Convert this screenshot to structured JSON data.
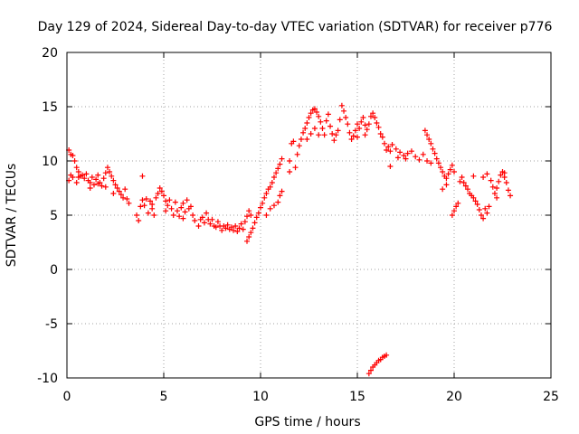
{
  "chart_data": {
    "type": "scatter",
    "title": "Day 129 of 2024, Sidereal Day-to-day VTEC variation (SDTVAR) for receiver p776",
    "xlabel": "GPS time / hours",
    "ylabel": "SDTVAR / TECUs",
    "xlim": [
      0,
      25
    ],
    "ylim": [
      -10,
      20
    ],
    "xticks": [
      "0",
      "5",
      "10",
      "15",
      "20",
      "25"
    ],
    "yticks": [
      "-10",
      "-5",
      "0",
      "5",
      "10",
      "15",
      "20"
    ],
    "grid": true,
    "marker": "plus",
    "colors": {
      "series": "#ff0000",
      "grid": "#a0a0a0",
      "axis": "#000000"
    },
    "series": [
      {
        "name": "SDTVAR",
        "points": [
          [
            0.1,
            11.0
          ],
          [
            0.2,
            10.6
          ],
          [
            0.3,
            10.5
          ],
          [
            0.4,
            10.0
          ],
          [
            0.5,
            9.4
          ],
          [
            0.6,
            9.0
          ],
          [
            0.7,
            8.6
          ],
          [
            0.1,
            8.2
          ],
          [
            0.2,
            8.7
          ],
          [
            0.3,
            8.5
          ],
          [
            0.5,
            8.0
          ],
          [
            0.6,
            8.5
          ],
          [
            0.8,
            8.7
          ],
          [
            0.9,
            8.4
          ],
          [
            1.0,
            8.8
          ],
          [
            1.1,
            8.2
          ],
          [
            1.2,
            8.0
          ],
          [
            1.3,
            8.5
          ],
          [
            1.4,
            7.8
          ],
          [
            1.5,
            8.3
          ],
          [
            1.6,
            8.7
          ],
          [
            1.7,
            8.0
          ],
          [
            1.8,
            7.7
          ],
          [
            1.9,
            8.4
          ],
          [
            2.0,
            8.9
          ],
          [
            2.1,
            9.4
          ],
          [
            2.2,
            9.0
          ],
          [
            2.3,
            8.6
          ],
          [
            2.4,
            8.2
          ],
          [
            2.5,
            7.8
          ],
          [
            2.6,
            7.5
          ],
          [
            2.7,
            7.2
          ],
          [
            2.8,
            6.9
          ],
          [
            2.9,
            6.6
          ],
          [
            3.0,
            7.4
          ],
          [
            3.1,
            6.5
          ],
          [
            3.2,
            6.1
          ],
          [
            1.2,
            7.5
          ],
          [
            1.6,
            7.9
          ],
          [
            2.0,
            7.6
          ],
          [
            2.4,
            7.0
          ],
          [
            3.6,
            5.0
          ],
          [
            3.7,
            4.5
          ],
          [
            3.8,
            5.8
          ],
          [
            3.9,
            6.4
          ],
          [
            4.0,
            5.9
          ],
          [
            4.1,
            6.5
          ],
          [
            4.2,
            5.2
          ],
          [
            4.3,
            6.3
          ],
          [
            4.4,
            5.6
          ],
          [
            4.5,
            5.0
          ],
          [
            4.6,
            6.6
          ],
          [
            4.7,
            7.0
          ],
          [
            4.8,
            7.5
          ],
          [
            4.9,
            7.2
          ],
          [
            5.0,
            6.8
          ],
          [
            5.1,
            6.3
          ],
          [
            5.2,
            5.9
          ],
          [
            5.3,
            6.4
          ],
          [
            5.4,
            5.6
          ],
          [
            5.5,
            5.0
          ],
          [
            5.6,
            6.2
          ],
          [
            5.7,
            5.4
          ],
          [
            5.8,
            4.9
          ],
          [
            5.9,
            5.7
          ],
          [
            6.0,
            6.1
          ],
          [
            6.1,
            5.3
          ],
          [
            6.2,
            6.4
          ],
          [
            6.3,
            5.6
          ],
          [
            6.4,
            5.8
          ],
          [
            6.5,
            5.0
          ],
          [
            6.6,
            4.5
          ],
          [
            3.9,
            8.6
          ],
          [
            4.4,
            6.0
          ],
          [
            5.1,
            5.4
          ],
          [
            6.0,
            4.7
          ],
          [
            6.8,
            4.0
          ],
          [
            6.9,
            4.6
          ],
          [
            7.0,
            4.8
          ],
          [
            7.1,
            4.3
          ],
          [
            7.2,
            5.2
          ],
          [
            7.3,
            4.6
          ],
          [
            7.4,
            4.2
          ],
          [
            7.5,
            4.6
          ],
          [
            7.6,
            4.0
          ],
          [
            7.7,
            3.9
          ],
          [
            7.8,
            4.4
          ],
          [
            7.9,
            4.0
          ],
          [
            8.0,
            3.6
          ],
          [
            8.1,
            4.0
          ],
          [
            8.2,
            3.8
          ],
          [
            8.3,
            4.1
          ],
          [
            8.4,
            3.7
          ],
          [
            8.5,
            3.9
          ],
          [
            8.6,
            3.6
          ],
          [
            8.7,
            4.0
          ],
          [
            8.8,
            3.5
          ],
          [
            8.9,
            3.8
          ],
          [
            9.0,
            4.2
          ],
          [
            9.1,
            3.7
          ],
          [
            9.2,
            4.4
          ],
          [
            9.3,
            4.9
          ],
          [
            9.4,
            5.4
          ],
          [
            9.5,
            5.0
          ],
          [
            9.3,
            2.6
          ],
          [
            9.4,
            3.0
          ],
          [
            9.5,
            3.4
          ],
          [
            9.6,
            3.8
          ],
          [
            9.7,
            4.3
          ],
          [
            9.8,
            4.8
          ],
          [
            9.9,
            5.2
          ],
          [
            10.0,
            5.7
          ],
          [
            10.1,
            6.1
          ],
          [
            10.2,
            6.6
          ],
          [
            10.3,
            7.0
          ],
          [
            10.4,
            7.4
          ],
          [
            10.5,
            7.6
          ],
          [
            10.6,
            8.0
          ],
          [
            10.7,
            8.5
          ],
          [
            10.8,
            8.9
          ],
          [
            10.9,
            9.3
          ],
          [
            11.0,
            9.7
          ],
          [
            11.1,
            10.2
          ],
          [
            10.3,
            5.0
          ],
          [
            10.5,
            5.6
          ],
          [
            10.7,
            5.9
          ],
          [
            10.9,
            6.2
          ],
          [
            11.0,
            6.8
          ],
          [
            11.1,
            7.2
          ],
          [
            11.5,
            10.0
          ],
          [
            11.5,
            9.0
          ],
          [
            11.6,
            11.6
          ],
          [
            11.7,
            11.8
          ],
          [
            11.8,
            9.4
          ],
          [
            11.9,
            10.6
          ],
          [
            12.0,
            11.4
          ],
          [
            12.1,
            12.0
          ],
          [
            12.2,
            12.6
          ],
          [
            12.3,
            13.0
          ],
          [
            12.4,
            13.5
          ],
          [
            12.5,
            14.0
          ],
          [
            12.6,
            14.4
          ],
          [
            12.7,
            14.7
          ],
          [
            12.8,
            14.8
          ],
          [
            12.9,
            14.5
          ],
          [
            13.0,
            14.1
          ],
          [
            13.1,
            13.6
          ],
          [
            13.2,
            13.0
          ],
          [
            13.3,
            12.4
          ],
          [
            12.4,
            12.0
          ],
          [
            12.6,
            12.5
          ],
          [
            12.8,
            13.0
          ],
          [
            13.0,
            12.4
          ],
          [
            13.4,
            13.7
          ],
          [
            13.5,
            14.3
          ],
          [
            13.6,
            13.2
          ],
          [
            13.7,
            12.5
          ],
          [
            13.8,
            11.9
          ],
          [
            13.9,
            12.4
          ],
          [
            14.0,
            12.8
          ],
          [
            14.1,
            13.8
          ],
          [
            14.2,
            15.1
          ],
          [
            14.3,
            14.6
          ],
          [
            14.4,
            14.0
          ],
          [
            14.5,
            13.4
          ],
          [
            14.6,
            12.6
          ],
          [
            14.7,
            12.0
          ],
          [
            14.8,
            12.3
          ],
          [
            14.9,
            12.8
          ],
          [
            15.0,
            13.4
          ],
          [
            15.1,
            13.0
          ],
          [
            15.2,
            13.6
          ],
          [
            15.3,
            14.0
          ],
          [
            15.4,
            13.3
          ],
          [
            15.5,
            12.9
          ],
          [
            15.6,
            13.4
          ],
          [
            15.7,
            14.1
          ],
          [
            15.8,
            14.4
          ],
          [
            15.9,
            14.0
          ],
          [
            16.0,
            13.5
          ],
          [
            16.1,
            13.1
          ],
          [
            16.2,
            12.5
          ],
          [
            16.3,
            12.2
          ],
          [
            16.4,
            11.6
          ],
          [
            16.5,
            11.0
          ],
          [
            16.7,
            10.9
          ],
          [
            16.8,
            11.5
          ],
          [
            15.0,
            12.2
          ],
          [
            15.4,
            12.4
          ],
          [
            16.6,
            11.3
          ],
          [
            16.7,
            9.5
          ],
          [
            17.0,
            11.1
          ],
          [
            17.2,
            10.8
          ],
          [
            17.4,
            10.5
          ],
          [
            17.6,
            10.7
          ],
          [
            17.8,
            10.9
          ],
          [
            18.0,
            10.4
          ],
          [
            18.2,
            10.1
          ],
          [
            18.4,
            10.6
          ],
          [
            18.6,
            10.0
          ],
          [
            18.8,
            9.8
          ],
          [
            17.1,
            10.3
          ],
          [
            17.5,
            10.2
          ],
          [
            18.5,
            12.8
          ],
          [
            18.6,
            12.4
          ],
          [
            18.7,
            12.0
          ],
          [
            18.8,
            11.6
          ],
          [
            18.9,
            11.1
          ],
          [
            19.0,
            10.7
          ],
          [
            19.1,
            10.2
          ],
          [
            19.2,
            9.8
          ],
          [
            19.3,
            9.4
          ],
          [
            19.4,
            9.0
          ],
          [
            19.5,
            8.6
          ],
          [
            19.6,
            8.4
          ],
          [
            19.7,
            8.8
          ],
          [
            19.8,
            9.2
          ],
          [
            19.9,
            9.6
          ],
          [
            20.0,
            9.0
          ],
          [
            19.4,
            7.4
          ],
          [
            19.6,
            7.8
          ],
          [
            19.9,
            5.0
          ],
          [
            20.0,
            5.4
          ],
          [
            20.1,
            5.8
          ],
          [
            20.2,
            6.1
          ],
          [
            20.3,
            8.1
          ],
          [
            20.4,
            8.5
          ],
          [
            20.5,
            8.0
          ],
          [
            20.6,
            7.7
          ],
          [
            20.7,
            7.4
          ],
          [
            20.8,
            7.0
          ],
          [
            20.9,
            6.8
          ],
          [
            21.0,
            6.6
          ],
          [
            21.1,
            6.3
          ],
          [
            21.2,
            6.0
          ],
          [
            21.3,
            5.5
          ],
          [
            21.4,
            5.0
          ],
          [
            21.5,
            4.7
          ],
          [
            21.6,
            5.6
          ],
          [
            21.7,
            5.2
          ],
          [
            21.8,
            5.8
          ],
          [
            21.5,
            8.5
          ],
          [
            21.7,
            8.8
          ],
          [
            21.9,
            8.2
          ],
          [
            22.0,
            7.6
          ],
          [
            22.1,
            7.0
          ],
          [
            22.2,
            7.5
          ],
          [
            22.3,
            8.1
          ],
          [
            22.4,
            8.7
          ],
          [
            22.5,
            9.0
          ],
          [
            22.6,
            8.5
          ],
          [
            22.7,
            8.0
          ],
          [
            22.8,
            7.3
          ],
          [
            22.9,
            6.8
          ],
          [
            22.2,
            6.6
          ],
          [
            21.0,
            8.6
          ],
          [
            22.6,
            8.9
          ],
          [
            15.6,
            -9.6
          ],
          [
            15.7,
            -9.3
          ],
          [
            15.8,
            -9.0
          ],
          [
            15.9,
            -8.8
          ],
          [
            16.0,
            -8.6
          ],
          [
            16.1,
            -8.4
          ],
          [
            16.2,
            -8.3
          ],
          [
            16.3,
            -8.1
          ],
          [
            16.4,
            -8.0
          ],
          [
            16.5,
            -7.9
          ]
        ]
      }
    ]
  }
}
